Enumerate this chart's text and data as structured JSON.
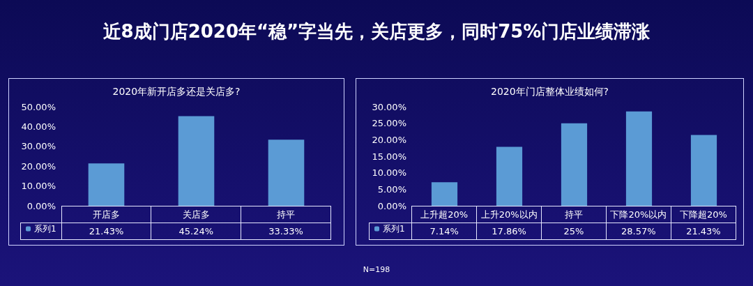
{
  "chart_data": [
    {
      "type": "other",
      "title": "近8成门店2020年“稳”字当先，关店更多，同时75%门店业绩滞涨",
      "annotations": [
        "N=198"
      ]
    },
    {
      "type": "bar",
      "title": "2020年新开店多还是关店多?",
      "categories": [
        "开店多",
        "关店多",
        "持平"
      ],
      "series": [
        {
          "name": "系列1",
          "color": "#5b9bd5",
          "values": [
            21.43,
            45.24,
            33.33
          ],
          "value_labels": [
            "21.43%",
            "45.24%",
            "33.33%"
          ]
        }
      ],
      "ylim": [
        0,
        50
      ],
      "yticks": [
        {
          "value": 0,
          "label": "0.00%"
        },
        {
          "value": 10,
          "label": "10.00%"
        },
        {
          "value": 20,
          "label": "20.00%"
        },
        {
          "value": 30,
          "label": "30.00%"
        },
        {
          "value": 40,
          "label": "40.00%"
        },
        {
          "value": 50,
          "label": "50.00%"
        }
      ],
      "grid": false,
      "legend": "bottom left"
    },
    {
      "type": "bar",
      "title": "2020年门店整体业绩如何?",
      "categories": [
        "上升超20%",
        "上升20%以内",
        "持平",
        "下降20%以内",
        "下降超20%"
      ],
      "series": [
        {
          "name": "系列1",
          "color": "#5b9bd5",
          "values": [
            7.14,
            17.86,
            25,
            28.57,
            21.43
          ],
          "value_labels": [
            "7.14%",
            "17.86%",
            "25%",
            "28.57%",
            "21.43%"
          ]
        }
      ],
      "ylim": [
        0,
        30
      ],
      "yticks": [
        {
          "value": 0,
          "label": "0.00%"
        },
        {
          "value": 5,
          "label": "5.00%"
        },
        {
          "value": 10,
          "label": "10.00%"
        },
        {
          "value": 15,
          "label": "15.00%"
        },
        {
          "value": 20,
          "label": "20.00%"
        },
        {
          "value": 25,
          "label": "25.00%"
        },
        {
          "value": 30,
          "label": "30.00%"
        }
      ],
      "grid": false,
      "legend": "bottom left"
    }
  ]
}
